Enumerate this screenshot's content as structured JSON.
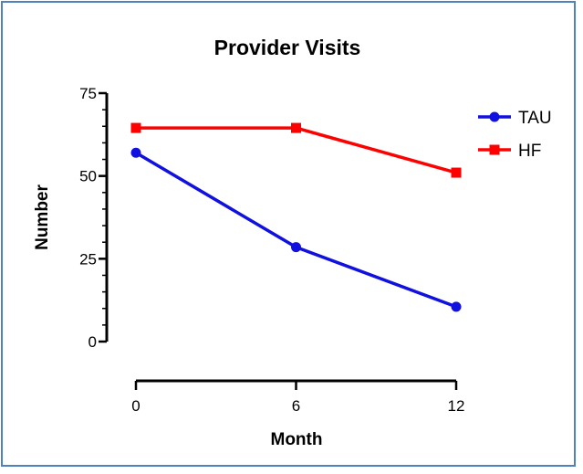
{
  "chart_data": {
    "type": "line",
    "title": "Provider Visits",
    "xlabel": "Month",
    "ylabel": "Number",
    "x": [
      0,
      6,
      12
    ],
    "xticks": [
      "0",
      "6",
      "12"
    ],
    "yticks": [
      "0",
      "25",
      "50",
      "75"
    ],
    "ylim": [
      0,
      75
    ],
    "xlim": [
      0,
      12
    ],
    "grid": false,
    "legend_position": "top-right",
    "series": [
      {
        "name": "TAU",
        "values": [
          57,
          28.5,
          10.5
        ],
        "color": "#1010e0",
        "marker": "circle"
      },
      {
        "name": "HF",
        "values": [
          64.5,
          64.5,
          51
        ],
        "color": "#ff0000",
        "marker": "square"
      }
    ]
  }
}
